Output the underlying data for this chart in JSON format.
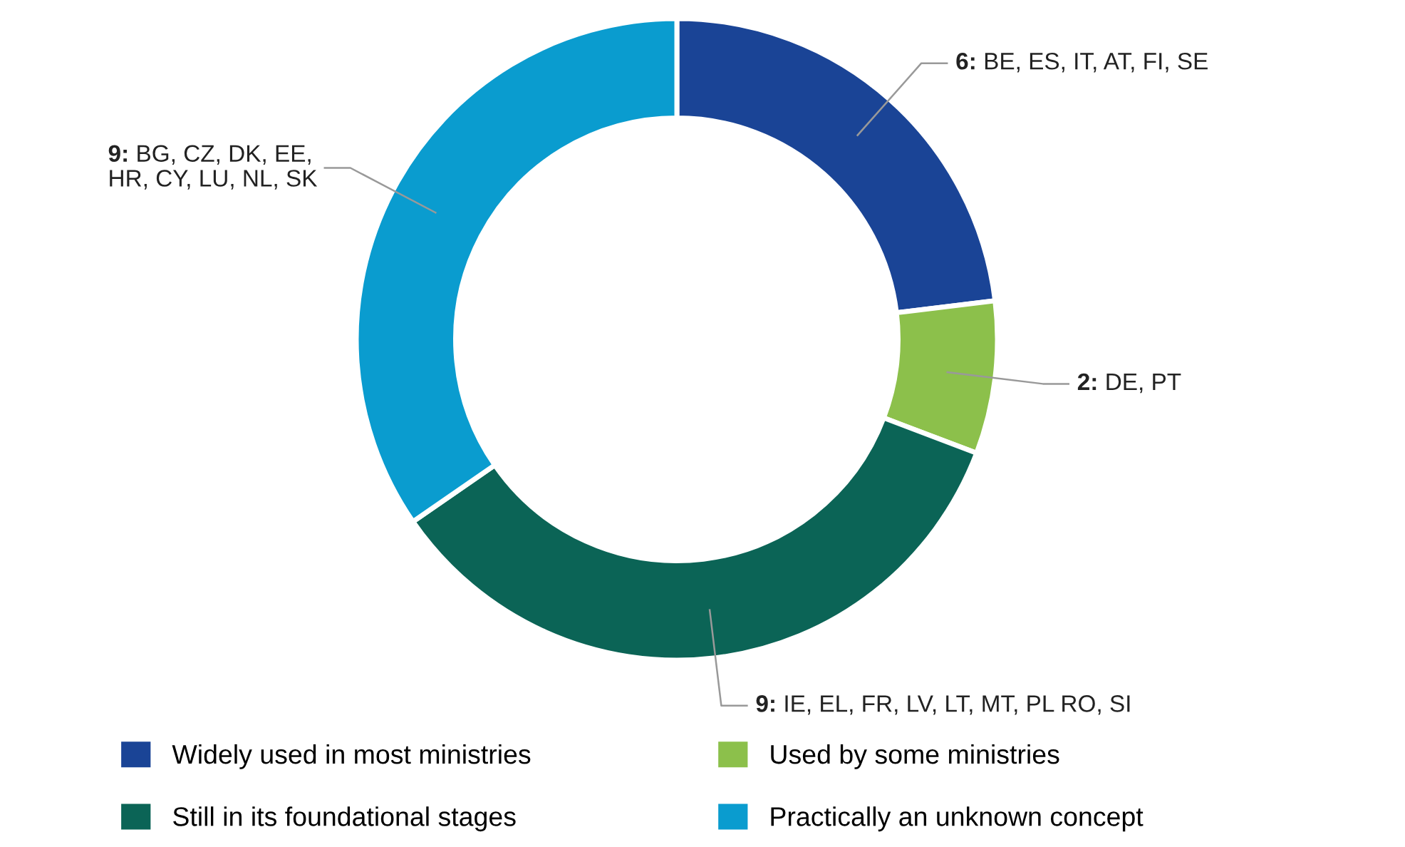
{
  "chart_data": {
    "type": "donut",
    "categories": [
      "Widely used in most ministries",
      "Used by some ministries",
      "Still in its foundational stages",
      "Practically an unknown concept"
    ],
    "values": [
      6,
      2,
      9,
      9
    ],
    "colors": [
      "#1a4496",
      "#8cc04b",
      "#0b6456",
      "#0a9ccf"
    ],
    "value_labels": [
      "6:",
      "2:",
      "9:",
      "9:"
    ],
    "annotations": [
      "BE, ES, IT, AT, FI, SE",
      "DE, PT",
      "IE, EL, FR, LV, LT, MT, PL RO, SI",
      "BG, CZ, DK, EE,\nHR, CY, LU, NL, SK"
    ],
    "legend": "bottom"
  }
}
